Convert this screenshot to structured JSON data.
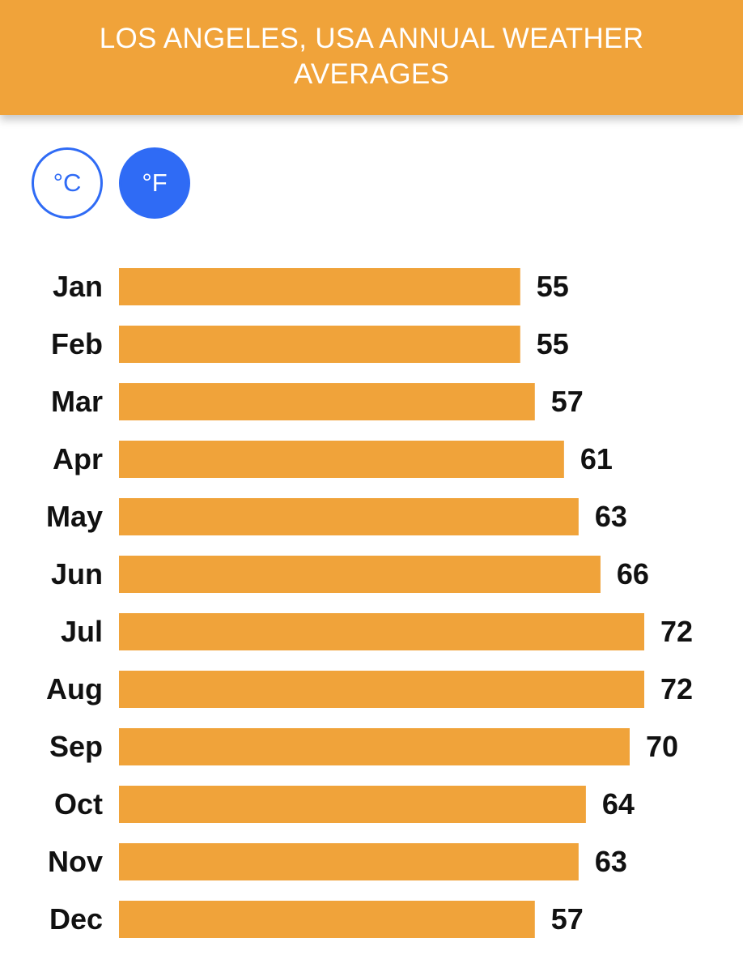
{
  "header": {
    "title": "LOS ANGELES, USA ANNUAL WEATHER AVERAGES"
  },
  "unit_toggle": {
    "celsius_label": "°C",
    "fahrenheit_label": "°F",
    "selected": "°F"
  },
  "colors": {
    "header_bg": "#F0A33A",
    "bar": "#F0A33A",
    "accent_blue": "#2F6BF5",
    "text": "#111111"
  },
  "chart_data": {
    "type": "bar",
    "orientation": "horizontal",
    "categories": [
      "Jan",
      "Feb",
      "Mar",
      "Apr",
      "May",
      "Jun",
      "Jul",
      "Aug",
      "Sep",
      "Oct",
      "Nov",
      "Dec"
    ],
    "values": [
      55,
      55,
      57,
      61,
      63,
      66,
      72,
      72,
      70,
      64,
      63,
      57
    ],
    "title": "",
    "xlabel": "",
    "ylabel": "",
    "xlim": [
      0,
      72
    ],
    "grid": false,
    "legend": "none",
    "data_labels": true
  }
}
